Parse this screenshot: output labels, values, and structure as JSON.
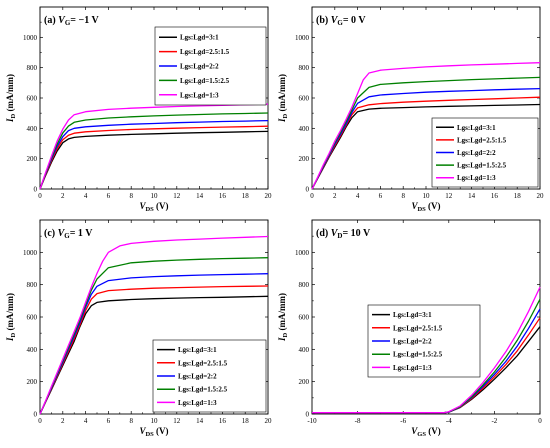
{
  "chart_data": [
    {
      "type": "line",
      "title_prefix": "(a) ",
      "title_var": "V",
      "title_sub": "G",
      "title_suffix": "= −1 V",
      "xlabel": "V",
      "xlabel_sub": "DS",
      "xlabel_unit": " (V)",
      "ylabel": "I",
      "ylabel_sub": "D",
      "ylabel_unit": " (mA/mm)",
      "xlim": [
        0,
        20
      ],
      "ylim": [
        0,
        1200
      ],
      "xticks": [
        "0",
        "2",
        "4",
        "6",
        "8",
        "10",
        "12",
        "14",
        "16",
        "18",
        "20"
      ],
      "yticks": [
        "0",
        "200",
        "400",
        "600",
        "800",
        "1000"
      ],
      "legend_position": "top-right",
      "series": [
        {
          "name": "Lgs:Lgd=3:1",
          "color": "#000000",
          "x": [
            0,
            0.5,
            1,
            1.5,
            2,
            2.5,
            3,
            4,
            6,
            8,
            10,
            12,
            14,
            16,
            18,
            20
          ],
          "y": [
            0,
            90,
            175,
            250,
            305,
            330,
            340,
            347,
            355,
            360,
            364,
            368,
            371,
            374,
            377,
            380
          ]
        },
        {
          "name": "Lgs:Lgd=2.5:1.5",
          "color": "#ff0000",
          "x": [
            0,
            0.5,
            1,
            1.5,
            2,
            2.5,
            3,
            4,
            6,
            8,
            10,
            12,
            14,
            16,
            18,
            20
          ],
          "y": [
            0,
            95,
            185,
            265,
            325,
            355,
            368,
            377,
            386,
            392,
            397,
            401,
            405,
            408,
            411,
            414
          ]
        },
        {
          "name": "Lgs:Lgd=2:2",
          "color": "#0000ff",
          "x": [
            0,
            0.5,
            1,
            1.5,
            2,
            2.5,
            3,
            4,
            6,
            8,
            10,
            12,
            14,
            16,
            18,
            20
          ],
          "y": [
            0,
            100,
            195,
            280,
            345,
            385,
            400,
            410,
            420,
            427,
            432,
            437,
            441,
            445,
            448,
            451
          ]
        },
        {
          "name": "Lgs:Lgd=1.5:2.5",
          "color": "#008000",
          "x": [
            0,
            0.5,
            1,
            1.5,
            2,
            2.5,
            3,
            4,
            6,
            8,
            10,
            12,
            14,
            16,
            18,
            20
          ],
          "y": [
            0,
            105,
            205,
            295,
            370,
            415,
            440,
            455,
            468,
            476,
            482,
            487,
            491,
            495,
            498,
            501
          ]
        },
        {
          "name": "Lgs:Lgd=1:3",
          "color": "#ff00ff",
          "x": [
            0,
            0.5,
            1,
            1.5,
            2,
            2.5,
            3,
            4,
            6,
            8,
            10,
            12,
            14,
            16,
            18,
            20
          ],
          "y": [
            0,
            110,
            215,
            315,
            395,
            455,
            490,
            510,
            525,
            533,
            539,
            544,
            548,
            552,
            556,
            560
          ]
        }
      ]
    },
    {
      "type": "line",
      "title_prefix": "(b) ",
      "title_var": "V",
      "title_sub": "G",
      "title_suffix": "= 0 V",
      "xlabel": "V",
      "xlabel_sub": "DS",
      "xlabel_unit": " (V)",
      "ylabel": "I",
      "ylabel_sub": "D",
      "ylabel_unit": " (mA/mm)",
      "xlim": [
        0,
        20
      ],
      "ylim": [
        0,
        1200
      ],
      "xticks": [
        "0",
        "2",
        "4",
        "6",
        "8",
        "10",
        "12",
        "14",
        "16",
        "18",
        "20"
      ],
      "yticks": [
        "0",
        "200",
        "400",
        "600",
        "800",
        "1000"
      ],
      "legend_position": "bottom-right",
      "series": [
        {
          "name": "Lgs:Lgd=3:1",
          "color": "#000000",
          "x": [
            0,
            0.5,
            1,
            1.5,
            2,
            2.5,
            3,
            3.5,
            4,
            5,
            6,
            8,
            10,
            12,
            14,
            16,
            18,
            20
          ],
          "y": [
            0,
            70,
            140,
            210,
            275,
            340,
            410,
            470,
            510,
            527,
            532,
            537,
            541,
            545,
            548,
            551,
            554,
            557
          ]
        },
        {
          "name": "Lgs:Lgd=2.5:1.5",
          "color": "#ff0000",
          "x": [
            0,
            0.5,
            1,
            1.5,
            2,
            2.5,
            3,
            3.5,
            4,
            5,
            6,
            8,
            10,
            12,
            14,
            16,
            18,
            20
          ],
          "y": [
            0,
            72,
            145,
            215,
            285,
            350,
            420,
            490,
            535,
            555,
            563,
            572,
            579,
            585,
            590,
            595,
            600,
            605
          ]
        },
        {
          "name": "Lgs:Lgd=2:2",
          "color": "#0000ff",
          "x": [
            0,
            0.5,
            1,
            1.5,
            2,
            2.5,
            3,
            3.5,
            4,
            5,
            6,
            8,
            10,
            12,
            14,
            16,
            18,
            20
          ],
          "y": [
            0,
            74,
            150,
            220,
            295,
            360,
            430,
            505,
            565,
            608,
            620,
            630,
            638,
            644,
            649,
            654,
            658,
            662
          ]
        },
        {
          "name": "Lgs:Lgd=1.5:2.5",
          "color": "#008000",
          "x": [
            0,
            0.5,
            1,
            1.5,
            2,
            2.5,
            3,
            3.5,
            4,
            5,
            6,
            8,
            10,
            12,
            14,
            16,
            18,
            20
          ],
          "y": [
            0,
            76,
            155,
            228,
            305,
            372,
            445,
            520,
            600,
            670,
            690,
            700,
            708,
            715,
            721,
            726,
            731,
            736
          ]
        },
        {
          "name": "Lgs:Lgd=1:3",
          "color": "#ff00ff",
          "x": [
            0,
            0.5,
            1,
            1.5,
            2,
            2.5,
            3,
            3.5,
            4,
            4.5,
            5,
            6,
            8,
            10,
            12,
            14,
            16,
            18,
            20
          ],
          "y": [
            0,
            78,
            160,
            235,
            315,
            385,
            460,
            540,
            630,
            720,
            765,
            783,
            795,
            805,
            812,
            818,
            823,
            828,
            833
          ]
        }
      ]
    },
    {
      "type": "line",
      "title_prefix": "(c) ",
      "title_var": "V",
      "title_sub": "G",
      "title_suffix": "= 1 V",
      "xlabel": "V",
      "xlabel_sub": "DS",
      "xlabel_unit": " (V)",
      "ylabel": "I",
      "ylabel_sub": "D",
      "ylabel_unit": " (mA/mm)",
      "xlim": [
        0,
        20
      ],
      "ylim": [
        0,
        1200
      ],
      "xticks": [
        "0",
        "2",
        "4",
        "6",
        "8",
        "10",
        "12",
        "14",
        "16",
        "18",
        "20"
      ],
      "yticks": [
        "0",
        "200",
        "400",
        "600",
        "800",
        "1000"
      ],
      "legend_position": "bottom-right",
      "series": [
        {
          "name": "Lgs:Lgd=3:1",
          "color": "#000000",
          "x": [
            0,
            0.5,
            1,
            1.5,
            2,
            2.5,
            3,
            3.5,
            4,
            4.5,
            5,
            6,
            8,
            10,
            12,
            14,
            16,
            18,
            20
          ],
          "y": [
            0,
            75,
            150,
            225,
            300,
            375,
            450,
            540,
            620,
            670,
            690,
            700,
            708,
            713,
            717,
            720,
            722,
            725,
            728
          ]
        },
        {
          "name": "Lgs:Lgd=2.5:1.5",
          "color": "#ff0000",
          "x": [
            0,
            0.5,
            1,
            1.5,
            2,
            2.5,
            3,
            3.5,
            4,
            4.5,
            5,
            6,
            8,
            10,
            12,
            14,
            16,
            18,
            20
          ],
          "y": [
            0,
            77,
            155,
            232,
            310,
            388,
            465,
            550,
            640,
            710,
            745,
            763,
            772,
            778,
            782,
            785,
            788,
            790,
            792
          ]
        },
        {
          "name": "Lgs:Lgd=2:2",
          "color": "#0000ff",
          "x": [
            0,
            0.5,
            1,
            1.5,
            2,
            2.5,
            3,
            3.5,
            4,
            4.5,
            5,
            6,
            8,
            10,
            12,
            14,
            16,
            18,
            20
          ],
          "y": [
            0,
            79,
            160,
            240,
            320,
            400,
            480,
            565,
            660,
            740,
            790,
            825,
            842,
            850,
            855,
            859,
            862,
            865,
            868
          ]
        },
        {
          "name": "Lgs:Lgd=1.5:2.5",
          "color": "#008000",
          "x": [
            0,
            0.5,
            1,
            1.5,
            2,
            2.5,
            3,
            3.5,
            4,
            4.5,
            5,
            6,
            8,
            10,
            12,
            14,
            16,
            18,
            20
          ],
          "y": [
            0,
            81,
            165,
            248,
            330,
            412,
            495,
            580,
            675,
            765,
            835,
            905,
            935,
            945,
            952,
            957,
            961,
            964,
            967
          ]
        },
        {
          "name": "Lgs:Lgd=1:3",
          "color": "#ff00ff",
          "x": [
            0,
            0.5,
            1,
            1.5,
            2,
            2.5,
            3,
            3.5,
            4,
            4.5,
            5,
            5.5,
            6,
            7,
            8,
            10,
            12,
            14,
            16,
            18,
            20
          ],
          "y": [
            0,
            83,
            170,
            255,
            340,
            425,
            510,
            595,
            690,
            785,
            870,
            945,
            1000,
            1040,
            1055,
            1068,
            1076,
            1082,
            1088,
            1093,
            1098
          ]
        }
      ]
    },
    {
      "type": "line",
      "title_prefix": "(d) ",
      "title_var": "V",
      "title_sub": "D",
      "title_suffix": "= 10 V",
      "xlabel": "V",
      "xlabel_sub": "GS",
      "xlabel_unit": " (V)",
      "ylabel": "I",
      "ylabel_sub": "D",
      "ylabel_unit": " (mA/mm)",
      "xlim": [
        -10,
        0
      ],
      "ylim": [
        0,
        1200
      ],
      "xticks": [
        "-10",
        "-8",
        "-6",
        "-4",
        "-2",
        "0"
      ],
      "yticks": [
        "0",
        "200",
        "400",
        "600",
        "800",
        "1000"
      ],
      "legend_position": "center-left",
      "series": [
        {
          "name": "Lgs:Lgd=3:1",
          "color": "#000000",
          "x": [
            -10,
            -8,
            -6,
            -4.2,
            -4,
            -3.5,
            -3,
            -2.5,
            -2,
            -1.5,
            -1,
            -0.5,
            0
          ],
          "y": [
            8,
            8,
            8,
            8,
            12,
            40,
            90,
            150,
            215,
            285,
            360,
            450,
            540
          ]
        },
        {
          "name": "Lgs:Lgd=2.5:1.5",
          "color": "#ff0000",
          "x": [
            -10,
            -8,
            -6,
            -4.2,
            -4,
            -3.5,
            -3,
            -2.5,
            -2,
            -1.5,
            -1,
            -0.5,
            0
          ],
          "y": [
            8,
            8,
            8,
            8,
            12,
            42,
            95,
            160,
            230,
            305,
            390,
            490,
            595
          ]
        },
        {
          "name": "Lgs:Lgd=2:2",
          "color": "#0000ff",
          "x": [
            -10,
            -8,
            -6,
            -4.2,
            -4,
            -3.5,
            -3,
            -2.5,
            -2,
            -1.5,
            -1,
            -0.5,
            0
          ],
          "y": [
            8,
            8,
            8,
            8,
            12,
            44,
            100,
            170,
            245,
            325,
            420,
            530,
            650
          ]
        },
        {
          "name": "Lgs:Lgd=1.5:2.5",
          "color": "#008000",
          "x": [
            -10,
            -8,
            -6,
            -4.2,
            -4,
            -3.5,
            -3,
            -2.5,
            -2,
            -1.5,
            -1,
            -0.5,
            0
          ],
          "y": [
            8,
            8,
            8,
            8,
            13,
            46,
            105,
            180,
            260,
            350,
            455,
            575,
            710
          ]
        },
        {
          "name": "Lgs:Lgd=1:3",
          "color": "#ff00ff",
          "x": [
            -10,
            -8,
            -6,
            -4.2,
            -4,
            -3.5,
            -3,
            -2.5,
            -2,
            -1.5,
            -1,
            -0.5,
            0
          ],
          "y": [
            8,
            8,
            8,
            8,
            14,
            50,
            115,
            195,
            285,
            385,
            500,
            635,
            785
          ]
        }
      ]
    }
  ]
}
